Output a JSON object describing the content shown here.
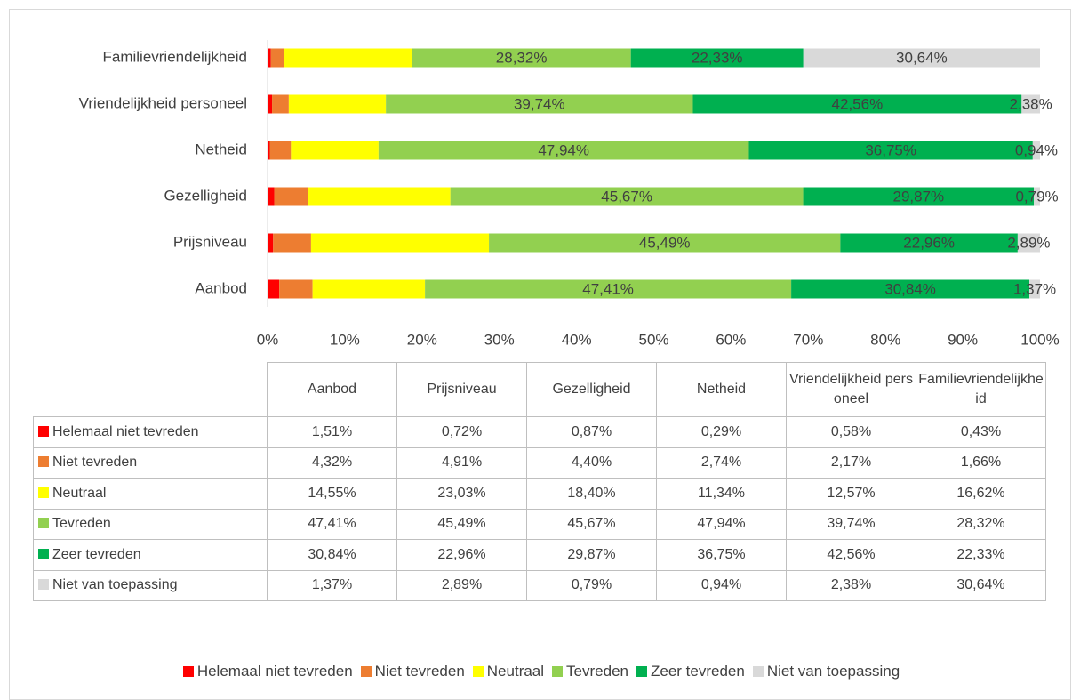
{
  "chart_data": {
    "type": "stacked_barh",
    "categories": [
      "Aanbod",
      "Prijsniveau",
      "Gezelligheid",
      "Netheid",
      "Vriendelijkheid personeel",
      "Familievriendelijkheid"
    ],
    "series": [
      {
        "name": "Helemaal niet tevreden",
        "color": "#ff0000",
        "show_labels": false,
        "values": [
          1.51,
          0.72,
          0.87,
          0.29,
          0.58,
          0.43
        ],
        "value_labels": [
          "1,51%",
          "0,72%",
          "0,87%",
          "0,29%",
          "0,58%",
          "0,43%"
        ]
      },
      {
        "name": "Niet tevreden",
        "color": "#ed7d31",
        "show_labels": false,
        "values": [
          4.32,
          4.91,
          4.4,
          2.74,
          2.17,
          1.66
        ],
        "value_labels": [
          "4,32%",
          "4,91%",
          "4,40%",
          "2,74%",
          "2,17%",
          "1,66%"
        ]
      },
      {
        "name": "Neutraal",
        "color": "#ffff00",
        "show_labels": false,
        "values": [
          14.55,
          23.03,
          18.4,
          11.34,
          12.57,
          16.62
        ],
        "value_labels": [
          "14,55%",
          "23,03%",
          "18,40%",
          "11,34%",
          "12,57%",
          "16,62%"
        ]
      },
      {
        "name": "Tevreden",
        "color": "#92d050",
        "show_labels": true,
        "values": [
          47.41,
          45.49,
          45.67,
          47.94,
          39.74,
          28.32
        ],
        "value_labels": [
          "47,41%",
          "45,49%",
          "45,67%",
          "47,94%",
          "39,74%",
          "28,32%"
        ]
      },
      {
        "name": "Zeer tevreden",
        "color": "#00b050",
        "show_labels": true,
        "values": [
          30.84,
          22.96,
          29.87,
          36.75,
          42.56,
          22.33
        ],
        "value_labels": [
          "30,84%",
          "22,96%",
          "29,87%",
          "36,75%",
          "42,56%",
          "22,33%"
        ]
      },
      {
        "name": "Niet van toepassing",
        "color": "#d9d9d9",
        "show_labels": true,
        "values": [
          1.37,
          2.89,
          0.79,
          0.94,
          2.38,
          30.64
        ],
        "value_labels": [
          "1,37%",
          "2,89%",
          "0,79%",
          "0,94%",
          "2,38%",
          "30,64%"
        ]
      }
    ],
    "xlim": [
      0,
      100
    ],
    "xticks": [
      {
        "value": 0,
        "label": "0%"
      },
      {
        "value": 10,
        "label": "10%"
      },
      {
        "value": 20,
        "label": "20%"
      },
      {
        "value": 30,
        "label": "30%"
      },
      {
        "value": 40,
        "label": "40%"
      },
      {
        "value": 50,
        "label": "50%"
      },
      {
        "value": 60,
        "label": "60%"
      },
      {
        "value": 70,
        "label": "70%"
      },
      {
        "value": 80,
        "label": "80%"
      },
      {
        "value": 90,
        "label": "90%"
      },
      {
        "value": 100,
        "label": "100%"
      }
    ],
    "grid": false,
    "data_table": true,
    "legend": "bottom"
  }
}
